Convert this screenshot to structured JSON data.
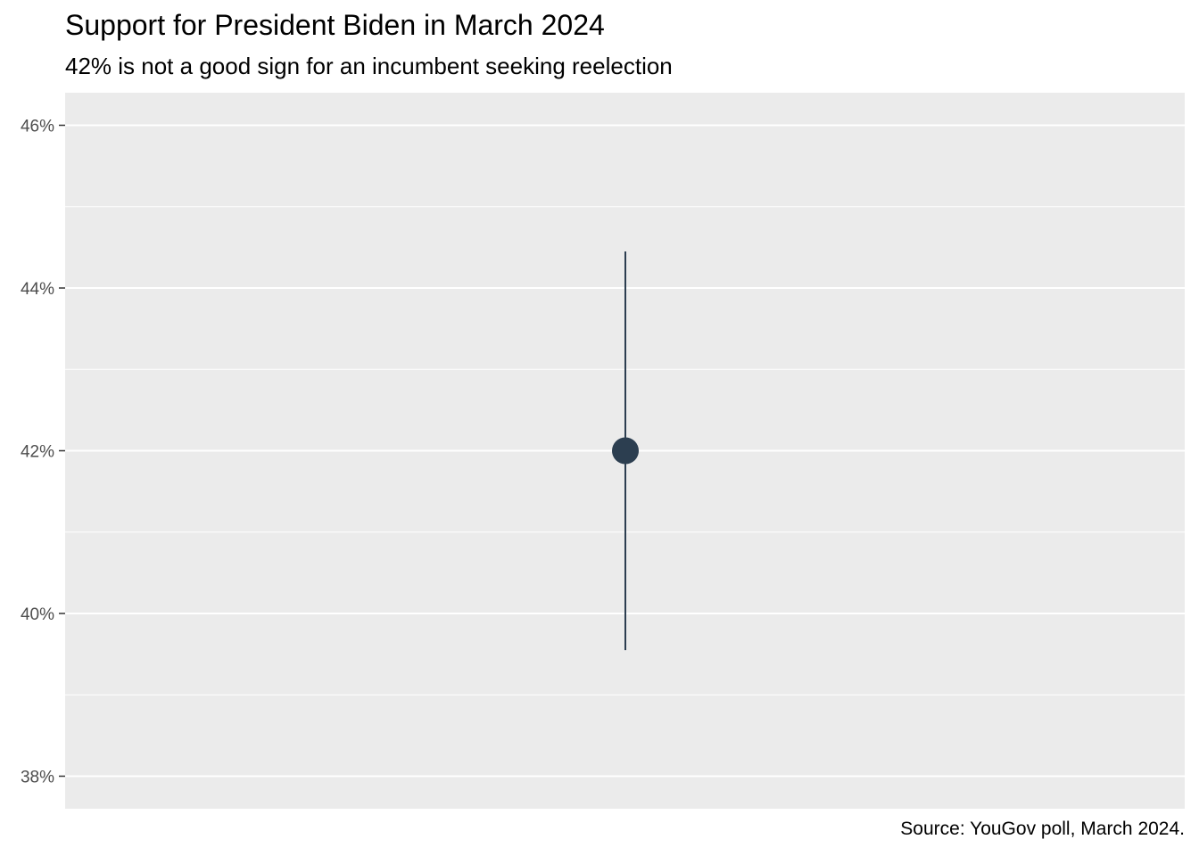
{
  "chart_data": {
    "type": "scatter",
    "title": "Support for President Biden in March 2024",
    "subtitle": "42% is not a good sign for an incumbent seeking reelection",
    "caption": "Source: YouGov poll, March 2024.",
    "xlabel": "",
    "ylabel": "",
    "ylim": [
      37.6,
      46.4
    ],
    "y_ticks": [
      38,
      40,
      42,
      44,
      46
    ],
    "y_tick_labels": [
      "38%",
      "40%",
      "42%",
      "44%",
      "46%"
    ],
    "grid": true,
    "points": [
      {
        "y": 42.0,
        "y_low": 39.55,
        "y_high": 44.45
      }
    ],
    "colors": {
      "point": "#2c3e50",
      "panel": "#ebebeb",
      "grid": "#ffffff"
    }
  }
}
